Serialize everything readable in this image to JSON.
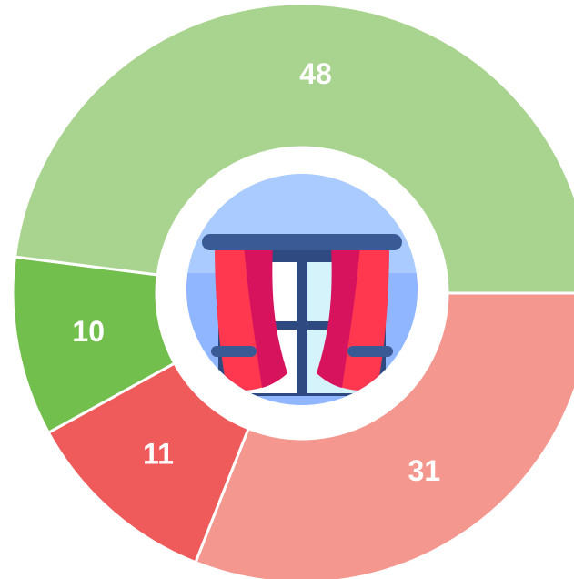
{
  "chart_data": {
    "type": "donut",
    "values": [
      31,
      11,
      10,
      48
    ],
    "colors": [
      "#f4978e",
      "#ef5a5a",
      "#72bf4d",
      "#a9d48f"
    ],
    "start_angle": 90,
    "direction": "clockwise"
  }
}
